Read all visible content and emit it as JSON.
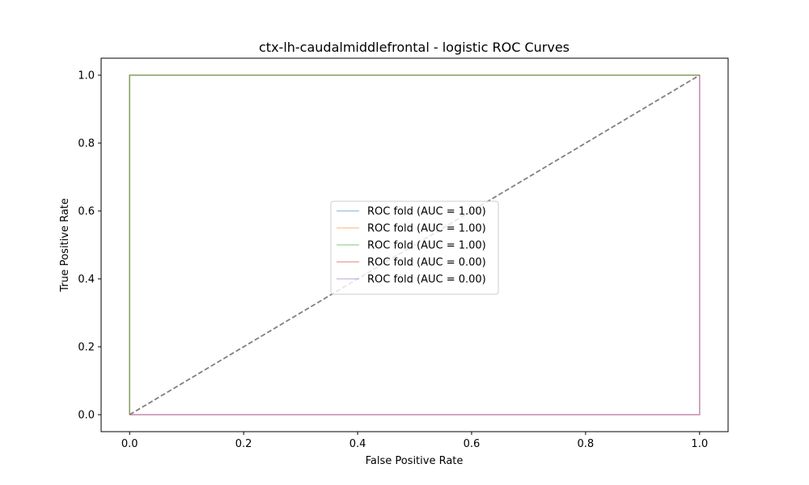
{
  "chart_data": {
    "type": "line",
    "title": "ctx-lh-caudalmiddlefrontal - logistic ROC Curves",
    "xlabel": "False Positive Rate",
    "ylabel": "True Positive Rate",
    "xlim": [
      -0.05,
      1.05
    ],
    "ylim": [
      -0.05,
      1.05
    ],
    "xticks": [
      "0.0",
      "0.2",
      "0.4",
      "0.6",
      "0.8",
      "1.0"
    ],
    "yticks": [
      "0.0",
      "0.2",
      "0.4",
      "0.6",
      "0.8",
      "1.0"
    ],
    "grid": false,
    "legend_position": "center",
    "series": [
      {
        "name": "ROC fold (AUC = 1.00)",
        "color": "#1f77b4",
        "x": [
          0,
          0,
          1
        ],
        "y": [
          0,
          1,
          1
        ]
      },
      {
        "name": "ROC fold (AUC = 1.00)",
        "color": "#ff7f0e",
        "x": [
          0,
          0,
          1
        ],
        "y": [
          0,
          1,
          1
        ]
      },
      {
        "name": "ROC fold (AUC = 1.00)",
        "color": "#2ca02c",
        "x": [
          0,
          0,
          1
        ],
        "y": [
          0,
          1,
          1
        ]
      },
      {
        "name": "ROC fold (AUC = 0.00)",
        "color": "#d62728",
        "x": [
          0,
          1,
          1
        ],
        "y": [
          0,
          0,
          1
        ]
      },
      {
        "name": "ROC fold (AUC = 0.00)",
        "color": "#9467bd",
        "x": [
          0,
          1,
          1
        ],
        "y": [
          0,
          0,
          1
        ]
      }
    ],
    "reference_line": {
      "color": "#808080",
      "style": "dashed",
      "x": [
        0,
        1
      ],
      "y": [
        0,
        1
      ]
    }
  }
}
